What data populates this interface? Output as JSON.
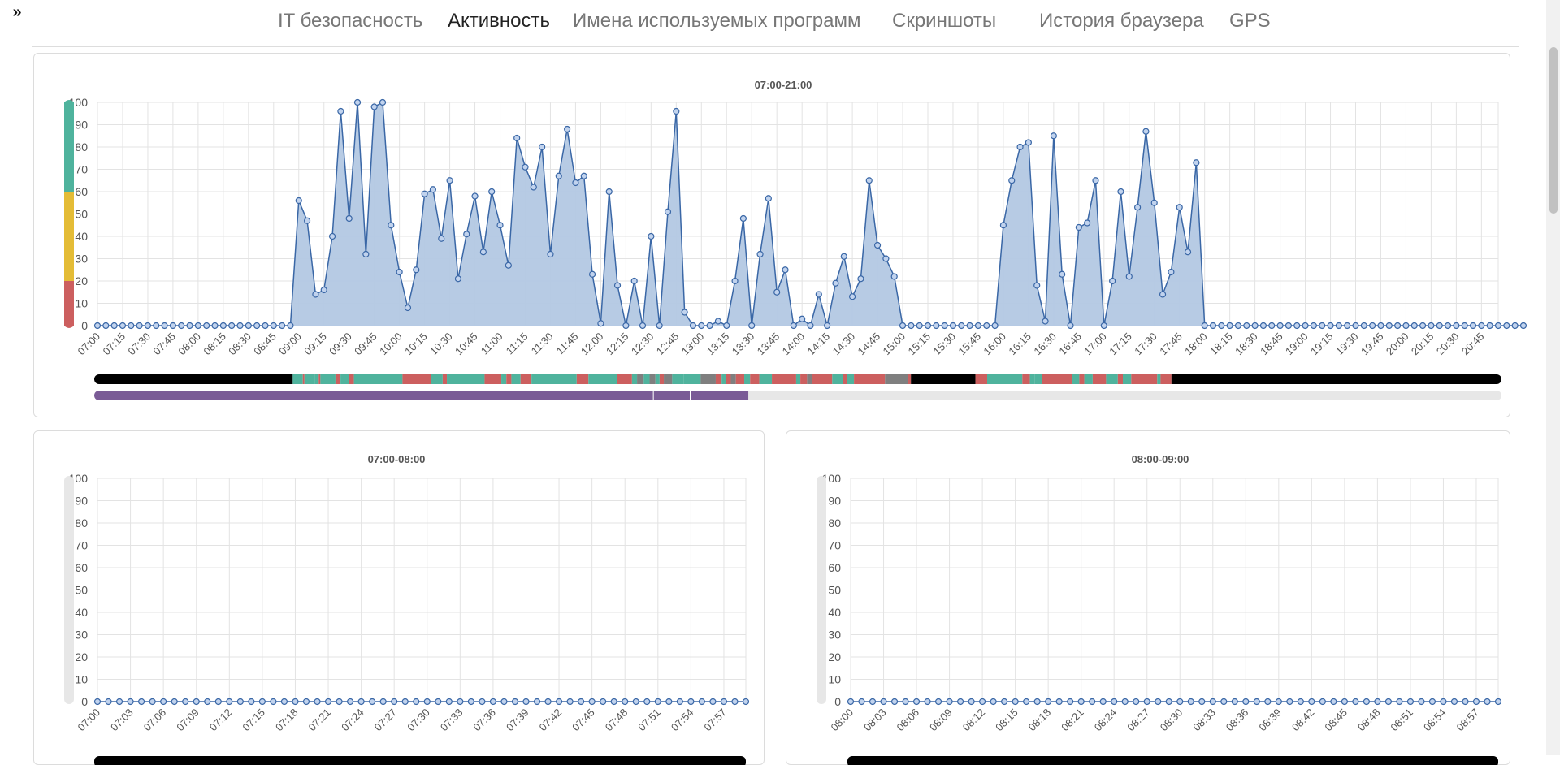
{
  "expander": {
    "icon": "double-chevron-right-icon",
    "label": "»"
  },
  "nav": {
    "tabs": [
      {
        "label": "IT безопасность",
        "active": false
      },
      {
        "label": "Активность",
        "active": true
      },
      {
        "label": "Имена используемых программ",
        "active": false
      },
      {
        "label": "Скриншоты",
        "active": false
      },
      {
        "label": "История браузера",
        "active": false
      },
      {
        "label": "GPS",
        "active": false
      }
    ]
  },
  "colors": {
    "area_fill": "#b3c8e3",
    "line": "#3a67a6",
    "point_fill": "#c1d3ee",
    "grid": "#e3e3e3",
    "productive": "#4fb39d",
    "neutral": "#e4bc36",
    "unproductive": "#cc5f5f",
    "idle": "#7f7f7f",
    "offline": "#000000",
    "purple": "#7a5b96",
    "empty": "#e7e7e7"
  },
  "legend_scale": [
    {
      "color": "productive",
      "from": 60,
      "to": 100
    },
    {
      "color": "neutral",
      "from": 20,
      "to": 60
    },
    {
      "color": "unproductive",
      "from": 0,
      "to": 20
    }
  ],
  "chart_data": [
    {
      "type": "area",
      "title": "07:00-21:00",
      "ylim": [
        0,
        100
      ],
      "yticks": [
        0,
        10,
        20,
        30,
        40,
        50,
        60,
        70,
        80,
        90,
        100
      ],
      "xticks": [
        "07:00",
        "07:15",
        "07:30",
        "07:45",
        "08:00",
        "08:15",
        "08:30",
        "08:45",
        "09:00",
        "09:15",
        "09:30",
        "09:45",
        "10:00",
        "10:15",
        "10:30",
        "10:45",
        "11:00",
        "11:15",
        "11:30",
        "11:45",
        "12:00",
        "12:15",
        "12:30",
        "12:45",
        "13:00",
        "13:15",
        "13:30",
        "13:45",
        "14:00",
        "14:15",
        "14:30",
        "14:45",
        "15:00",
        "15:15",
        "15:30",
        "15:45",
        "16:00",
        "16:15",
        "16:30",
        "16:45",
        "17:00",
        "17:15",
        "17:30",
        "17:45",
        "18:00",
        "18:15",
        "18:30",
        "18:45",
        "19:00",
        "19:15",
        "19:30",
        "19:45",
        "20:00",
        "20:15",
        "20:30",
        "20:45"
      ],
      "grid": true,
      "series": [
        {
          "values": [
            0,
            0,
            0,
            0,
            0,
            0,
            0,
            0,
            0,
            0,
            0,
            0,
            0,
            0,
            0,
            0,
            0,
            0,
            0,
            0,
            0,
            0,
            0,
            0,
            56,
            47,
            14,
            16,
            40,
            96,
            48,
            100,
            32,
            98,
            100,
            45,
            24,
            8,
            25,
            59,
            61,
            39,
            65,
            21,
            41,
            58,
            33,
            60,
            45,
            27,
            84,
            71,
            62,
            80,
            32,
            67,
            88,
            64,
            67,
            23,
            1,
            60,
            18,
            0,
            20,
            0,
            40,
            0,
            51,
            96,
            6,
            0,
            0,
            0,
            2,
            0,
            20,
            48,
            0,
            32,
            57,
            15,
            25,
            0,
            3,
            0,
            14,
            0,
            19,
            31,
            13,
            21,
            65,
            36,
            30,
            22,
            0,
            0,
            0,
            0,
            0,
            0,
            0,
            0,
            0,
            0,
            0,
            0,
            45,
            65,
            80,
            82,
            18,
            2,
            85,
            23,
            0,
            44,
            46,
            65,
            0,
            20,
            60,
            22,
            53,
            87,
            55,
            14,
            24,
            53,
            33,
            73,
            0,
            0,
            0,
            0,
            0,
            0,
            0,
            0,
            0,
            0,
            0,
            0,
            0,
            0,
            0,
            0,
            0,
            0,
            0,
            0,
            0,
            0,
            0,
            0,
            0,
            0,
            0,
            0,
            0,
            0,
            0,
            0,
            0,
            0,
            0,
            0,
            0,
            0,
            0
          ]
        }
      ],
      "activity_bar": [
        {
          "from": 0,
          "to": 23.7,
          "color": "offline"
        },
        {
          "from": 23.7,
          "to": 24.9,
          "color": "productive"
        },
        {
          "from": 24.9,
          "to": 25.1,
          "color": "unproductive"
        },
        {
          "from": 25.1,
          "to": 26.3,
          "color": "productive"
        },
        {
          "from": 26.3,
          "to": 26.8,
          "color": "productive"
        },
        {
          "from": 26.8,
          "to": 27.0,
          "color": "unproductive"
        },
        {
          "from": 27.0,
          "to": 28.8,
          "color": "productive"
        },
        {
          "from": 28.8,
          "to": 29.4,
          "color": "unproductive"
        },
        {
          "from": 29.4,
          "to": 30.4,
          "color": "productive"
        },
        {
          "from": 30.4,
          "to": 31.0,
          "color": "unproductive"
        },
        {
          "from": 31.0,
          "to": 36.8,
          "color": "productive"
        },
        {
          "from": 36.8,
          "to": 40.2,
          "color": "unproductive"
        },
        {
          "from": 40.2,
          "to": 41.6,
          "color": "productive"
        },
        {
          "from": 41.6,
          "to": 42.1,
          "color": "unproductive"
        },
        {
          "from": 42.1,
          "to": 46.6,
          "color": "productive"
        },
        {
          "from": 46.6,
          "to": 48.6,
          "color": "unproductive"
        },
        {
          "from": 48.6,
          "to": 49.2,
          "color": "productive"
        },
        {
          "from": 49.2,
          "to": 49.8,
          "color": "unproductive"
        },
        {
          "from": 49.8,
          "to": 50.9,
          "color": "productive"
        },
        {
          "from": 50.9,
          "to": 52.2,
          "color": "unproductive"
        },
        {
          "from": 52.2,
          "to": 57.6,
          "color": "productive"
        },
        {
          "from": 57.6,
          "to": 59.0,
          "color": "unproductive"
        },
        {
          "from": 59.0,
          "to": 62.4,
          "color": "productive"
        },
        {
          "from": 62.4,
          "to": 64.2,
          "color": "unproductive"
        },
        {
          "from": 64.2,
          "to": 64.8,
          "color": "productive"
        },
        {
          "from": 64.8,
          "to": 65.6,
          "color": "idle"
        },
        {
          "from": 65.6,
          "to": 66.3,
          "color": "productive"
        },
        {
          "from": 66.3,
          "to": 67.0,
          "color": "idle"
        },
        {
          "from": 67.0,
          "to": 67.5,
          "color": "productive"
        },
        {
          "from": 67.5,
          "to": 68.0,
          "color": "unproductive"
        },
        {
          "from": 68.0,
          "to": 69.0,
          "color": "idle"
        },
        {
          "from": 69.0,
          "to": 70.4,
          "color": "productive"
        },
        {
          "from": 70.4,
          "to": 72.4,
          "color": "productive"
        },
        {
          "from": 72.4,
          "to": 74.2,
          "color": "idle"
        },
        {
          "from": 74.2,
          "to": 74.9,
          "color": "unproductive"
        },
        {
          "from": 74.9,
          "to": 75.4,
          "color": "productive"
        },
        {
          "from": 75.4,
          "to": 76.0,
          "color": "unproductive"
        },
        {
          "from": 76.0,
          "to": 76.6,
          "color": "idle"
        },
        {
          "from": 76.6,
          "to": 77.6,
          "color": "unproductive"
        },
        {
          "from": 77.6,
          "to": 78.3,
          "color": "productive"
        },
        {
          "from": 78.3,
          "to": 79.4,
          "color": "unproductive"
        },
        {
          "from": 79.4,
          "to": 80.9,
          "color": "productive"
        },
        {
          "from": 80.9,
          "to": 83.8,
          "color": "unproductive"
        },
        {
          "from": 83.8,
          "to": 84.3,
          "color": "productive"
        },
        {
          "from": 84.3,
          "to": 85.1,
          "color": "unproductive"
        },
        {
          "from": 85.1,
          "to": 85.7,
          "color": "idle"
        },
        {
          "from": 85.7,
          "to": 88.1,
          "color": "unproductive"
        },
        {
          "from": 88.1,
          "to": 89.4,
          "color": "productive"
        },
        {
          "from": 89.4,
          "to": 89.9,
          "color": "unproductive"
        },
        {
          "from": 89.9,
          "to": 90.7,
          "color": "productive"
        },
        {
          "from": 90.7,
          "to": 94.4,
          "color": "unproductive"
        },
        {
          "from": 94.4,
          "to": 97.1,
          "color": "idle"
        },
        {
          "from": 97.1,
          "to": 97.5,
          "color": "unproductive"
        },
        {
          "from": 97.5,
          "to": 105.2,
          "color": "offline"
        },
        {
          "from": 105.2,
          "to": 106.6,
          "color": "unproductive"
        },
        {
          "from": 106.6,
          "to": 110.8,
          "color": "productive"
        },
        {
          "from": 110.8,
          "to": 111.7,
          "color": "unproductive"
        },
        {
          "from": 111.7,
          "to": 112.3,
          "color": "productive"
        },
        {
          "from": 112.3,
          "to": 113.1,
          "color": "productive"
        },
        {
          "from": 113.1,
          "to": 116.7,
          "color": "unproductive"
        },
        {
          "from": 116.7,
          "to": 117.6,
          "color": "productive"
        },
        {
          "from": 117.6,
          "to": 118.2,
          "color": "unproductive"
        },
        {
          "from": 118.2,
          "to": 119.2,
          "color": "productive"
        },
        {
          "from": 119.2,
          "to": 120.8,
          "color": "unproductive"
        },
        {
          "from": 120.8,
          "to": 122.2,
          "color": "productive"
        },
        {
          "from": 122.2,
          "to": 122.8,
          "color": "unproductive"
        },
        {
          "from": 122.8,
          "to": 123.8,
          "color": "productive"
        },
        {
          "from": 123.8,
          "to": 126.9,
          "color": "unproductive"
        },
        {
          "from": 126.9,
          "to": 127.3,
          "color": "productive"
        },
        {
          "from": 127.3,
          "to": 128.6,
          "color": "unproductive"
        },
        {
          "from": 128.6,
          "to": 168,
          "color": "offline"
        }
      ],
      "secondary_bar": [
        {
          "from": 0,
          "to": 66.7,
          "color": "purple"
        },
        {
          "from": 66.8,
          "to": 71.1,
          "color": "purple"
        },
        {
          "from": 71.2,
          "to": 78.1,
          "color": "purple"
        },
        {
          "from": 78.1,
          "to": 168,
          "color": "empty"
        }
      ],
      "slots": 168
    },
    {
      "type": "area",
      "title": "07:00-08:00",
      "ylim": [
        0,
        100
      ],
      "yticks": [
        0,
        10,
        20,
        30,
        40,
        50,
        60,
        70,
        80,
        90,
        100
      ],
      "xticks": [
        "07:00",
        "07:03",
        "07:06",
        "07:09",
        "07:12",
        "07:15",
        "07:18",
        "07:21",
        "07:24",
        "07:27",
        "07:30",
        "07:33",
        "07:36",
        "07:39",
        "07:42",
        "07:45",
        "07:48",
        "07:51",
        "07:54",
        "07:57"
      ],
      "grid": true,
      "series": [
        {
          "values": [
            0,
            0,
            0,
            0,
            0,
            0,
            0,
            0,
            0,
            0,
            0,
            0,
            0,
            0,
            0,
            0,
            0,
            0,
            0,
            0,
            0,
            0,
            0,
            0,
            0,
            0,
            0,
            0,
            0,
            0,
            0,
            0,
            0,
            0,
            0,
            0,
            0,
            0,
            0,
            0,
            0,
            0,
            0,
            0,
            0,
            0,
            0,
            0,
            0,
            0,
            0,
            0,
            0,
            0,
            0,
            0,
            0,
            0,
            0,
            0
          ]
        }
      ],
      "slots": 60
    },
    {
      "type": "area",
      "title": "08:00-09:00",
      "ylim": [
        0,
        100
      ],
      "yticks": [
        0,
        10,
        20,
        30,
        40,
        50,
        60,
        70,
        80,
        90,
        100
      ],
      "xticks": [
        "08:00",
        "08:03",
        "08:06",
        "08:09",
        "08:12",
        "08:15",
        "08:18",
        "08:21",
        "08:24",
        "08:27",
        "08:30",
        "08:33",
        "08:36",
        "08:39",
        "08:42",
        "08:45",
        "08:48",
        "08:51",
        "08:54",
        "08:57"
      ],
      "grid": true,
      "series": [
        {
          "values": [
            0,
            0,
            0,
            0,
            0,
            0,
            0,
            0,
            0,
            0,
            0,
            0,
            0,
            0,
            0,
            0,
            0,
            0,
            0,
            0,
            0,
            0,
            0,
            0,
            0,
            0,
            0,
            0,
            0,
            0,
            0,
            0,
            0,
            0,
            0,
            0,
            0,
            0,
            0,
            0,
            0,
            0,
            0,
            0,
            0,
            0,
            0,
            0,
            0,
            0,
            0,
            0,
            0,
            0,
            0,
            0,
            0,
            0,
            0,
            0
          ]
        }
      ],
      "slots": 60
    }
  ]
}
